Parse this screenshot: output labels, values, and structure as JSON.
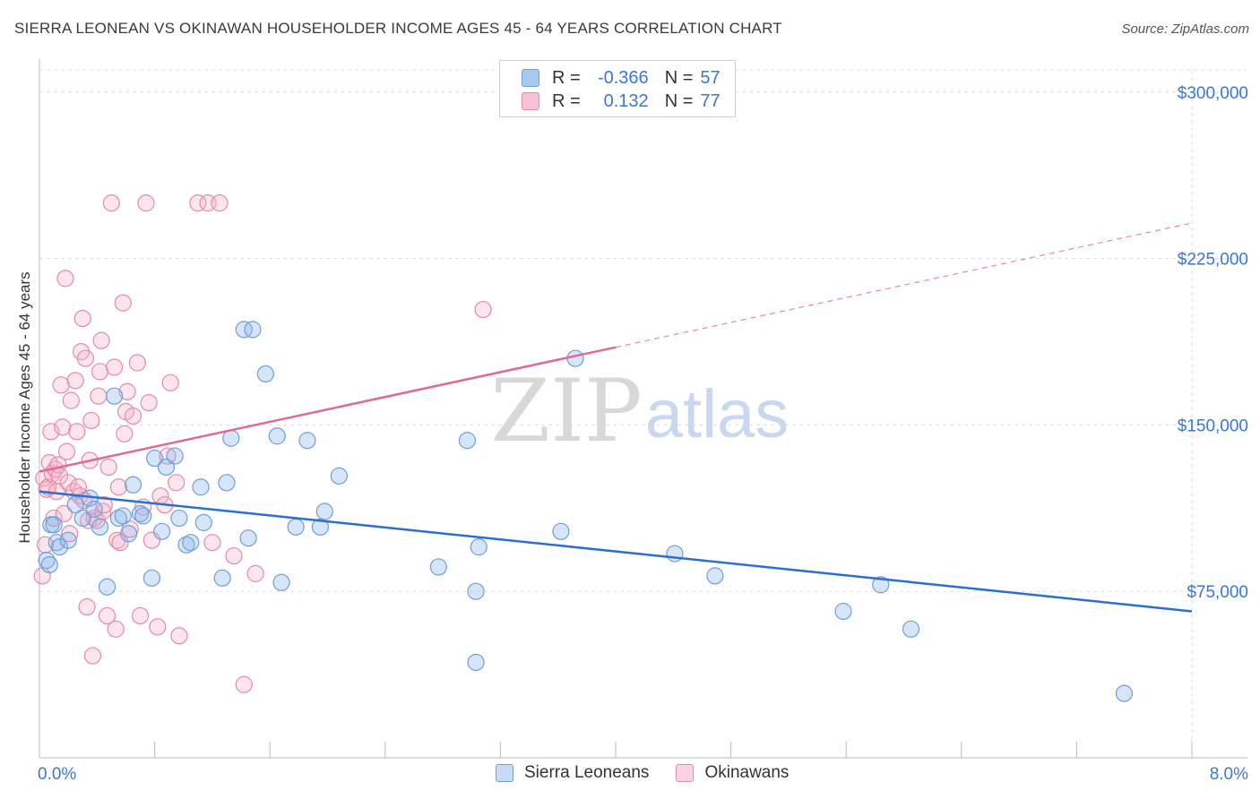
{
  "title": "SIERRA LEONEAN VS OKINAWAN HOUSEHOLDER INCOME AGES 45 - 64 YEARS CORRELATION CHART",
  "source": "Source: ZipAtlas.com",
  "watermark": {
    "zip": "ZIP",
    "atlas": "atlas"
  },
  "legend": {
    "rows": [
      {
        "r_label": "R =",
        "r_value": "-0.366",
        "n_label": "N =",
        "n_value": "57",
        "color": "#a9c8f0",
        "border": "#6f9fd8"
      },
      {
        "r_label": "R =",
        "r_value": "0.132",
        "n_label": "N =",
        "n_value": "77",
        "color": "#f7c3d2",
        "border": "#e58aa7"
      }
    ]
  },
  "bottom_legend": [
    "Sierra Leoneans",
    "Okinawans"
  ],
  "colors": {
    "blue": "#6f9fd8",
    "blue_fill": "rgba(140,180,235,0.35)",
    "blue_line": "#2a6fd1",
    "pink": "#e58aa7",
    "pink_fill": "rgba(245,180,200,0.35)",
    "pink_line": "#e06a93",
    "tick_text": "#3a78d6",
    "grid": "#dddddd"
  },
  "chart_data": {
    "type": "scatter",
    "title": "SIERRA LEONEAN VS OKINAWAN HOUSEHOLDER INCOME AGES 45 - 64 YEARS CORRELATION CHART",
    "xlabel": "",
    "ylabel": "Householder Income Ages 45 - 64 years",
    "xlim": [
      0,
      8
    ],
    "ylim": [
      0,
      310000
    ],
    "x_tick_labels": [
      {
        "value": 0,
        "label": "0.0%"
      },
      {
        "value": 8,
        "label": "8.0%"
      }
    ],
    "y_ticks": [
      {
        "value": 75000,
        "label": "$75,000"
      },
      {
        "value": 150000,
        "label": "$150,000"
      },
      {
        "value": 225000,
        "label": "$225,000"
      },
      {
        "value": 300000,
        "label": "$300,000"
      }
    ],
    "series": [
      {
        "name": "Sierra Leoneans",
        "color": "#6f9fd8",
        "trend": {
          "x0": 0,
          "y0": 120000,
          "x1": 8,
          "y1": 66000,
          "dash_from": null
        },
        "points": [
          [
            0.05,
            89000
          ],
          [
            0.07,
            87000
          ],
          [
            0.08,
            105000
          ],
          [
            0.1,
            105000
          ],
          [
            0.12,
            97000
          ],
          [
            0.14,
            95000
          ],
          [
            0.25,
            114000
          ],
          [
            0.3,
            108000
          ],
          [
            0.35,
            117000
          ],
          [
            0.38,
            112000
          ],
          [
            0.42,
            104000
          ],
          [
            0.47,
            77000
          ],
          [
            0.52,
            163000
          ],
          [
            0.55,
            108000
          ],
          [
            0.58,
            109000
          ],
          [
            0.62,
            101000
          ],
          [
            0.65,
            123000
          ],
          [
            0.7,
            110000
          ],
          [
            0.72,
            109000
          ],
          [
            0.78,
            81000
          ],
          [
            0.8,
            135000
          ],
          [
            0.85,
            102000
          ],
          [
            0.88,
            131000
          ],
          [
            0.94,
            136000
          ],
          [
            0.97,
            108000
          ],
          [
            1.02,
            96000
          ],
          [
            1.05,
            97000
          ],
          [
            1.12,
            122000
          ],
          [
            1.14,
            106000
          ],
          [
            1.27,
            81000
          ],
          [
            1.3,
            124000
          ],
          [
            1.33,
            144000
          ],
          [
            1.45,
            99000
          ],
          [
            1.42,
            193000
          ],
          [
            1.48,
            193000
          ],
          [
            1.57,
            173000
          ],
          [
            1.65,
            145000
          ],
          [
            1.68,
            79000
          ],
          [
            1.78,
            104000
          ],
          [
            1.86,
            143000
          ],
          [
            1.95,
            104000
          ],
          [
            1.98,
            111000
          ],
          [
            2.08,
            127000
          ],
          [
            2.77,
            86000
          ],
          [
            2.97,
            143000
          ],
          [
            3.03,
            75000
          ],
          [
            3.05,
            95000
          ],
          [
            3.03,
            43000
          ],
          [
            3.62,
            102000
          ],
          [
            3.72,
            180000
          ],
          [
            4.41,
            92000
          ],
          [
            4.69,
            82000
          ],
          [
            5.58,
            66000
          ],
          [
            5.84,
            78000
          ],
          [
            6.05,
            58000
          ],
          [
            7.53,
            29000
          ],
          [
            0.2,
            98000
          ]
        ]
      },
      {
        "name": "Okinawans",
        "color": "#e58aa7",
        "trend": {
          "x0": 0,
          "y0": 129000,
          "x1": 8,
          "y1": 241000,
          "dash_from": 4.0
        },
        "points": [
          [
            0.02,
            82000
          ],
          [
            0.03,
            126000
          ],
          [
            0.04,
            96000
          ],
          [
            0.05,
            121000
          ],
          [
            0.06,
            122000
          ],
          [
            0.07,
            133000
          ],
          [
            0.08,
            147000
          ],
          [
            0.09,
            128000
          ],
          [
            0.1,
            108000
          ],
          [
            0.11,
            130000
          ],
          [
            0.12,
            120000
          ],
          [
            0.13,
            132000
          ],
          [
            0.14,
            127000
          ],
          [
            0.15,
            168000
          ],
          [
            0.16,
            149000
          ],
          [
            0.17,
            110000
          ],
          [
            0.18,
            216000
          ],
          [
            0.19,
            138000
          ],
          [
            0.2,
            124000
          ],
          [
            0.21,
            101000
          ],
          [
            0.22,
            161000
          ],
          [
            0.24,
            120000
          ],
          [
            0.25,
            170000
          ],
          [
            0.26,
            147000
          ],
          [
            0.27,
            122000
          ],
          [
            0.28,
            118000
          ],
          [
            0.29,
            183000
          ],
          [
            0.3,
            198000
          ],
          [
            0.31,
            116000
          ],
          [
            0.32,
            180000
          ],
          [
            0.33,
            68000
          ],
          [
            0.34,
            107000
          ],
          [
            0.35,
            134000
          ],
          [
            0.36,
            152000
          ],
          [
            0.37,
            46000
          ],
          [
            0.38,
            108000
          ],
          [
            0.4,
            107000
          ],
          [
            0.41,
            163000
          ],
          [
            0.42,
            174000
          ],
          [
            0.43,
            188000
          ],
          [
            0.44,
            111000
          ],
          [
            0.45,
            114000
          ],
          [
            0.47,
            64000
          ],
          [
            0.48,
            131000
          ],
          [
            0.5,
            250000
          ],
          [
            0.52,
            176000
          ],
          [
            0.53,
            58000
          ],
          [
            0.54,
            98000
          ],
          [
            0.55,
            122000
          ],
          [
            0.56,
            97000
          ],
          [
            0.58,
            205000
          ],
          [
            0.59,
            146000
          ],
          [
            0.6,
            156000
          ],
          [
            0.61,
            165000
          ],
          [
            0.63,
            103000
          ],
          [
            0.65,
            154000
          ],
          [
            0.68,
            178000
          ],
          [
            0.7,
            64000
          ],
          [
            0.72,
            113000
          ],
          [
            0.74,
            250000
          ],
          [
            0.76,
            160000
          ],
          [
            0.78,
            98000
          ],
          [
            0.82,
            59000
          ],
          [
            0.84,
            118000
          ],
          [
            0.87,
            114000
          ],
          [
            0.89,
            136000
          ],
          [
            0.91,
            169000
          ],
          [
            0.95,
            124000
          ],
          [
            0.97,
            55000
          ],
          [
            1.1,
            250000
          ],
          [
            1.17,
            250000
          ],
          [
            1.2,
            97000
          ],
          [
            1.25,
            250000
          ],
          [
            1.35,
            91000
          ],
          [
            1.42,
            33000
          ],
          [
            1.5,
            83000
          ],
          [
            3.08,
            202000
          ]
        ]
      }
    ]
  }
}
